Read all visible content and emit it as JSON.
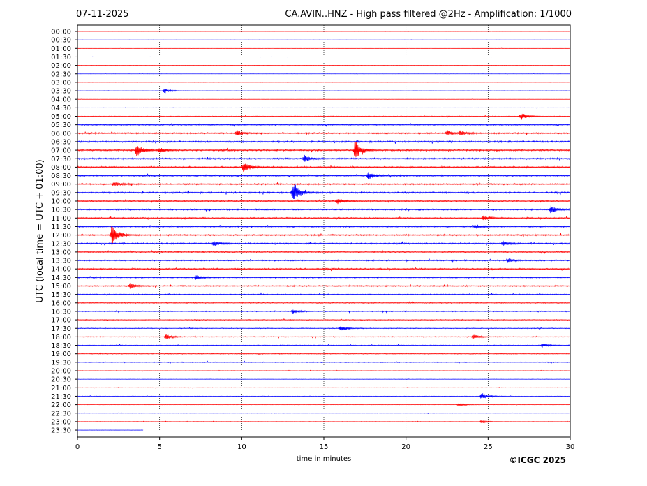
{
  "header": {
    "date": "07-11-2025",
    "title": "CA.AVIN..HNZ - High pass filtered @2Hz - Amplification: 1/1000"
  },
  "footer": {
    "copyright": "©ICGC 2025"
  },
  "chart_data": {
    "type": "line",
    "title": "CA.AVIN..HNZ - High pass filtered @2Hz - Amplification: 1/1000",
    "date": "07-11-2025",
    "xlabel": "time in minutes",
    "ylabel": "UTC (local time = UTC + 01:00)",
    "xlim": [
      0,
      30
    ],
    "x_ticks": [
      0,
      5,
      10,
      15,
      20,
      25,
      30
    ],
    "x_gridlines": [
      5,
      10,
      15,
      20,
      25
    ],
    "grid": "vertical dotted",
    "rows": [
      "00:00",
      "00:30",
      "01:00",
      "01:30",
      "02:00",
      "02:30",
      "03:00",
      "03:30",
      "04:00",
      "04:30",
      "05:00",
      "05:30",
      "06:00",
      "06:30",
      "07:00",
      "07:30",
      "08:00",
      "08:30",
      "09:00",
      "09:30",
      "10:00",
      "10:30",
      "11:00",
      "11:30",
      "12:00",
      "12:30",
      "13:00",
      "13:30",
      "14:00",
      "14:30",
      "15:00",
      "15:30",
      "16:00",
      "16:30",
      "17:00",
      "17:30",
      "18:00",
      "18:30",
      "19:00",
      "19:30",
      "20:00",
      "20:30",
      "21:00",
      "21:30",
      "22:00",
      "22:30",
      "23:00",
      "23:30"
    ],
    "row_colors": [
      "#ff0000",
      "#0000ff"
    ],
    "row_noise_level": [
      0.1,
      0.1,
      0.1,
      0.1,
      0.1,
      0.1,
      0.15,
      0.2,
      0.1,
      0.15,
      0.4,
      0.8,
      0.9,
      1.0,
      1.0,
      1.0,
      1.0,
      0.9,
      0.9,
      1.0,
      0.9,
      0.9,
      0.8,
      0.9,
      0.9,
      0.9,
      0.8,
      0.8,
      0.9,
      0.8,
      0.8,
      0.6,
      0.6,
      0.6,
      0.5,
      0.5,
      0.5,
      0.5,
      0.5,
      0.5,
      0.3,
      0.2,
      0.2,
      0.3,
      0.2,
      0.2,
      0.3,
      0.15
    ],
    "row_last_minute": [
      30,
      30,
      30,
      30,
      30,
      30,
      30,
      30,
      30,
      30,
      30,
      30,
      30,
      30,
      30,
      30,
      30,
      30,
      30,
      30,
      30,
      30,
      30,
      30,
      30,
      30,
      30,
      30,
      30,
      30,
      30,
      30,
      30,
      30,
      30,
      30,
      30,
      30,
      30,
      30,
      30,
      30,
      30,
      30,
      30,
      30,
      30,
      4
    ],
    "events": [
      {
        "row": "03:30",
        "minute": 5.3,
        "amp": 0.5
      },
      {
        "row": "05:00",
        "minute": 27.0,
        "amp": 0.7
      },
      {
        "row": "06:00",
        "minute": 9.7,
        "amp": 0.6
      },
      {
        "row": "06:00",
        "minute": 22.5,
        "amp": 0.6
      },
      {
        "row": "06:00",
        "minute": 23.3,
        "amp": 0.5
      },
      {
        "row": "07:00",
        "minute": 3.6,
        "amp": 1.3
      },
      {
        "row": "07:00",
        "minute": 5.0,
        "amp": 0.5
      },
      {
        "row": "07:00",
        "minute": 16.9,
        "amp": 1.8
      },
      {
        "row": "07:30",
        "minute": 13.8,
        "amp": 0.7
      },
      {
        "row": "08:00",
        "minute": 10.1,
        "amp": 1.0
      },
      {
        "row": "08:30",
        "minute": 17.7,
        "amp": 0.7
      },
      {
        "row": "09:00",
        "minute": 2.2,
        "amp": 0.5
      },
      {
        "row": "09:30",
        "minute": 13.1,
        "amp": 2.3
      },
      {
        "row": "10:00",
        "minute": 15.8,
        "amp": 0.6
      },
      {
        "row": "10:30",
        "minute": 28.8,
        "amp": 0.8
      },
      {
        "row": "11:00",
        "minute": 24.7,
        "amp": 0.5
      },
      {
        "row": "11:30",
        "minute": 24.2,
        "amp": 0.4
      },
      {
        "row": "12:00",
        "minute": 2.1,
        "amp": 2.0
      },
      {
        "row": "12:30",
        "minute": 8.3,
        "amp": 0.5
      },
      {
        "row": "12:30",
        "minute": 25.9,
        "amp": 0.5
      },
      {
        "row": "13:30",
        "minute": 26.2,
        "amp": 0.4
      },
      {
        "row": "14:30",
        "minute": 7.2,
        "amp": 0.4
      },
      {
        "row": "15:00",
        "minute": 3.2,
        "amp": 0.5
      },
      {
        "row": "16:30",
        "minute": 13.1,
        "amp": 0.4
      },
      {
        "row": "17:30",
        "minute": 16.0,
        "amp": 0.5
      },
      {
        "row": "18:00",
        "minute": 5.4,
        "amp": 0.5
      },
      {
        "row": "18:00",
        "minute": 24.1,
        "amp": 0.5
      },
      {
        "row": "18:30",
        "minute": 28.3,
        "amp": 0.4
      },
      {
        "row": "21:30",
        "minute": 24.6,
        "amp": 0.7
      },
      {
        "row": "22:00",
        "minute": 23.2,
        "amp": 0.3
      },
      {
        "row": "23:00",
        "minute": 24.6,
        "amp": 0.3
      }
    ]
  }
}
